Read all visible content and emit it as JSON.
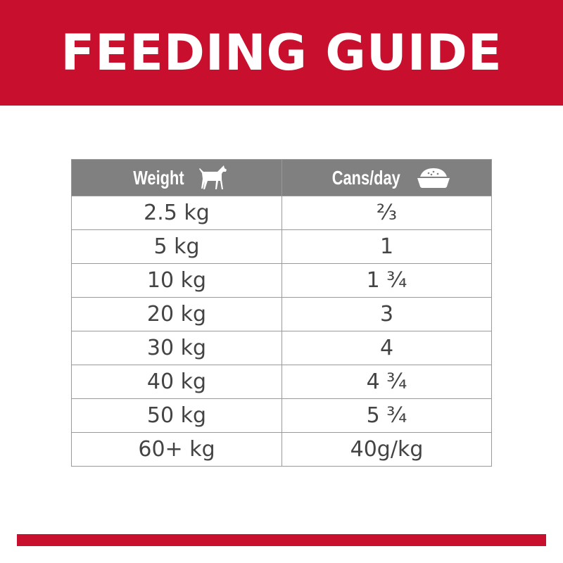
{
  "title": "FEEDING GUIDE",
  "colors": {
    "brand_red": "#c8102e",
    "header_gray": "#808080",
    "text": "#444444"
  },
  "table": {
    "headers": [
      {
        "label": "Weight",
        "icon": "dog-icon"
      },
      {
        "label": "Cans/day",
        "icon": "food-bowl-icon"
      }
    ],
    "rows": [
      [
        "2.5 kg",
        "⅔"
      ],
      [
        "5 kg",
        "1"
      ],
      [
        "10 kg",
        "1 ¾"
      ],
      [
        "20 kg",
        "3"
      ],
      [
        "30 kg",
        "4"
      ],
      [
        "40 kg",
        "4 ¾"
      ],
      [
        "50 kg",
        "5 ¾"
      ],
      [
        "60+ kg",
        "40g/kg"
      ]
    ]
  }
}
